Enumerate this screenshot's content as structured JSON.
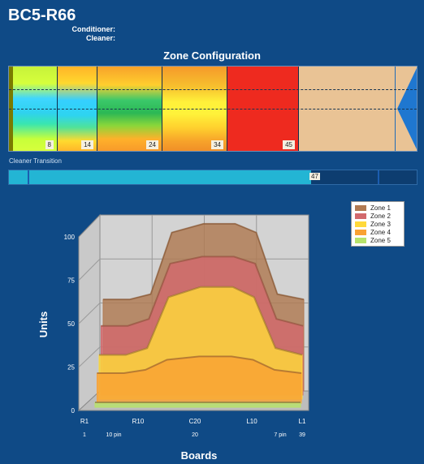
{
  "app": {
    "title": "BC5-R66",
    "conditioner_label": "Conditioner:",
    "cleaner_label": "Cleaner:"
  },
  "zone_config": {
    "title": "Zone Configuration",
    "segments": [
      {
        "label": "8"
      },
      {
        "label": "14"
      },
      {
        "label": "24"
      },
      {
        "label": "34"
      },
      {
        "label": "45"
      }
    ]
  },
  "cleaner_transition": {
    "label": "Cleaner Transition",
    "value": "47"
  },
  "chart_data": {
    "type": "area",
    "xlabel": "Boards",
    "ylabel": "Units",
    "ylim": [
      0,
      100
    ],
    "y_ticks": [
      "0",
      "25",
      "50",
      "75",
      "100"
    ],
    "x_ticks": [
      "R1",
      "R10",
      "C20",
      "L10",
      "L1"
    ],
    "x_sub_ticks": [
      "1",
      "10 pin",
      "20",
      "7 pin",
      "39"
    ],
    "x": [
      1,
      6,
      10,
      14,
      20,
      26,
      30,
      34,
      39
    ],
    "series": [
      {
        "name": "Zone 1",
        "color": "#b07a52",
        "values": [
          52,
          52,
          55,
          90,
          95,
          95,
          90,
          55,
          52
        ]
      },
      {
        "name": "Zone 2",
        "color": "#d2696c",
        "values": [
          40,
          40,
          44,
          76,
          80,
          80,
          76,
          44,
          40
        ]
      },
      {
        "name": "Zone 3",
        "color": "#ffd93a",
        "values": [
          26,
          26,
          30,
          60,
          66,
          66,
          60,
          30,
          26
        ]
      },
      {
        "name": "Zone 4",
        "color": "#f9a233",
        "values": [
          18,
          18,
          20,
          26,
          28,
          28,
          26,
          20,
          18
        ]
      },
      {
        "name": "Zone 5",
        "color": "#b7e36b",
        "values": [
          3,
          3,
          3,
          3,
          3,
          3,
          3,
          3,
          3
        ]
      }
    ],
    "legend_position": "top-right",
    "grid": true
  }
}
